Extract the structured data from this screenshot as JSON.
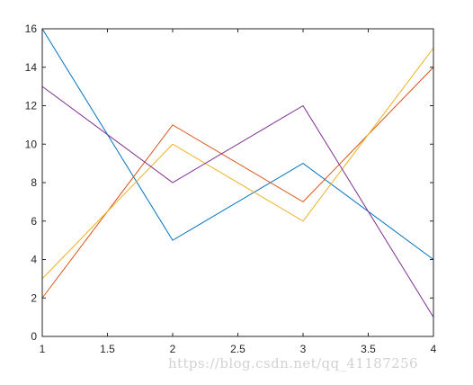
{
  "chart_data": {
    "type": "line",
    "title": "",
    "xlabel": "",
    "ylabel": "",
    "xlim": [
      1,
      4
    ],
    "ylim": [
      0,
      16
    ],
    "grid": false,
    "legend": "none",
    "x_ticks": [
      1,
      1.5,
      2,
      2.5,
      3,
      3.5,
      4
    ],
    "y_ticks": [
      0,
      2,
      4,
      6,
      8,
      10,
      12,
      14,
      16
    ],
    "x": [
      1,
      2,
      3,
      4
    ],
    "series": [
      {
        "values": [
          16,
          5,
          9,
          4
        ],
        "color": "#0072BD"
      },
      {
        "values": [
          2,
          11,
          7,
          14
        ],
        "color": "#D95319"
      },
      {
        "values": [
          3,
          10,
          6,
          15
        ],
        "color": "#EDB120"
      },
      {
        "values": [
          13,
          8,
          12,
          1
        ],
        "color": "#7E2F8E"
      }
    ]
  },
  "watermark": "https://blog.csdn.net/qq_41187256"
}
